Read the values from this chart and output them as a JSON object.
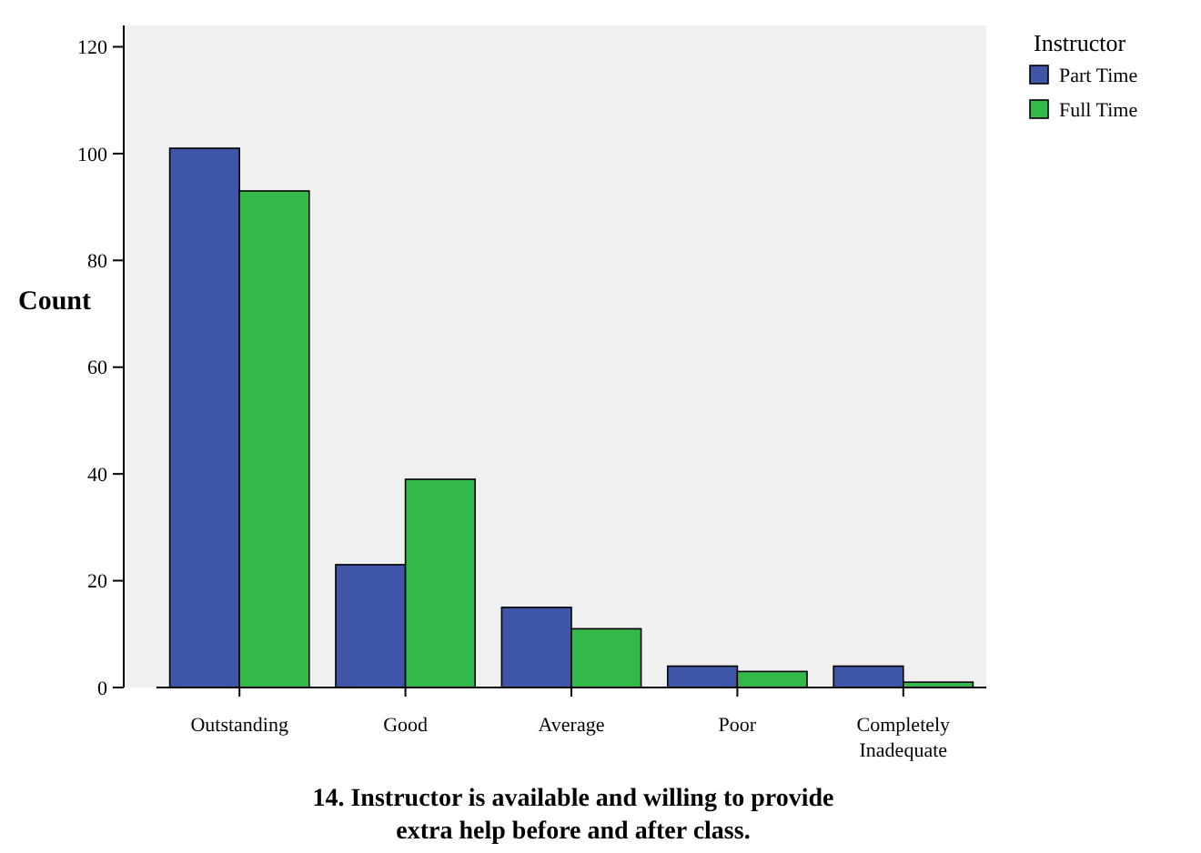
{
  "chart_data": {
    "type": "bar",
    "title": "14. Instructor is available and willing to provide extra help before and after class.",
    "ylabel": "Count",
    "legend_title": "Instructor",
    "legend": "top right",
    "categories": [
      "Outstanding",
      "Good",
      "Average",
      "Poor",
      "Completely Inadequate"
    ],
    "series": [
      {
        "name": "Part Time",
        "color": "#3f56a8",
        "values": [
          101,
          23,
          15,
          4,
          4
        ]
      },
      {
        "name": "Full Time",
        "color": "#33b94a",
        "values": [
          93,
          39,
          11,
          3,
          1
        ]
      }
    ],
    "ylim": [
      0,
      124
    ],
    "yticks": [
      0,
      20,
      40,
      60,
      80,
      100,
      120
    ]
  }
}
